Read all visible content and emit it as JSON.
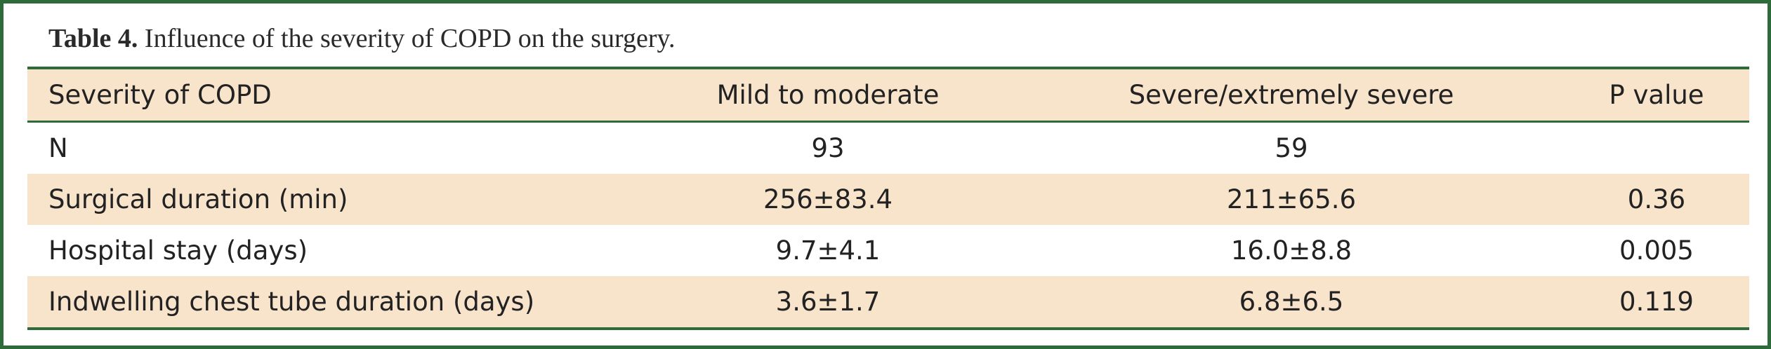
{
  "caption": {
    "label": "Table 4.",
    "text": " Influence of the severity of COPD on the surgery."
  },
  "table": {
    "headers": [
      "Severity of COPD",
      "Mild to moderate",
      "Severe/extremely severe",
      "P value"
    ],
    "rows": [
      [
        "N",
        "93",
        "59",
        ""
      ],
      [
        "Surgical duration (min)",
        "256±83.4",
        "211±65.6",
        "0.36"
      ],
      [
        "Hospital stay (days)",
        "9.7±4.1",
        "16.0±8.8",
        "0.005"
      ],
      [
        "Indwelling chest tube duration (days)",
        "3.6±1.7",
        "6.8±6.5",
        "0.119"
      ]
    ]
  },
  "colors": {
    "border": "#2e6b3a",
    "row_shade": "#f8e3cb"
  }
}
